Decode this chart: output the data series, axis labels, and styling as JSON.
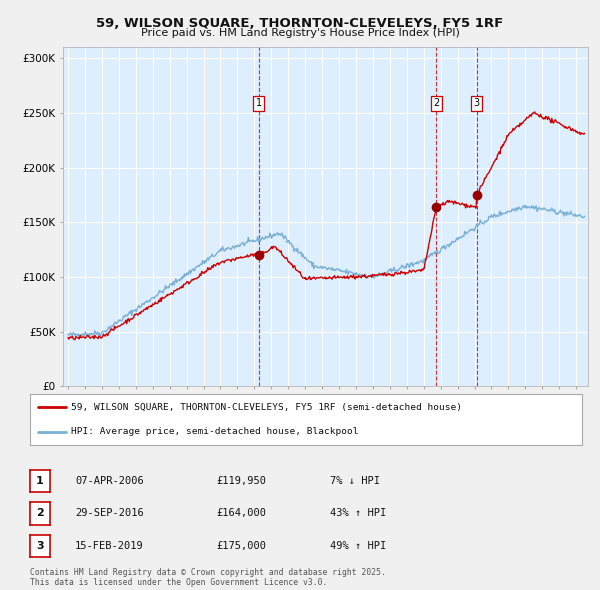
{
  "title_line1": "59, WILSON SQUARE, THORNTON-CLEVELEYS, FY5 1RF",
  "title_line2": "Price paid vs. HM Land Registry's House Price Index (HPI)",
  "ylim": [
    0,
    310000
  ],
  "yticks": [
    0,
    50000,
    100000,
    150000,
    200000,
    250000,
    300000
  ],
  "ytick_labels": [
    "£0",
    "£50K",
    "£100K",
    "£150K",
    "£200K",
    "£250K",
    "£300K"
  ],
  "sale_dates_num": [
    2006.27,
    2016.75,
    2019.12
  ],
  "sale_prices": [
    119950,
    164000,
    175000
  ],
  "sale_labels": [
    "1",
    "2",
    "3"
  ],
  "vline_color": "#cc0000",
  "sale_color": "#cc0000",
  "hpi_color": "#7ab0d4",
  "dot_color": "#990000",
  "legend_sale": "59, WILSON SQUARE, THORNTON-CLEVELEYS, FY5 1RF (semi-detached house)",
  "legend_hpi": "HPI: Average price, semi-detached house, Blackpool",
  "table_rows": [
    [
      "1",
      "07-APR-2006",
      "£119,950",
      "7% ↓ HPI"
    ],
    [
      "2",
      "29-SEP-2016",
      "£164,000",
      "43% ↑ HPI"
    ],
    [
      "3",
      "15-FEB-2019",
      "£175,000",
      "49% ↑ HPI"
    ]
  ],
  "footnote": "Contains HM Land Registry data © Crown copyright and database right 2025.\nThis data is licensed under the Open Government Licence v3.0.",
  "background_color": "#f0f0f0",
  "plot_bg_color": "#ddeeff",
  "grid_color": "#ffffff",
  "legend_border_color": "#aaaaaa",
  "table_box_color": "#cc0000"
}
